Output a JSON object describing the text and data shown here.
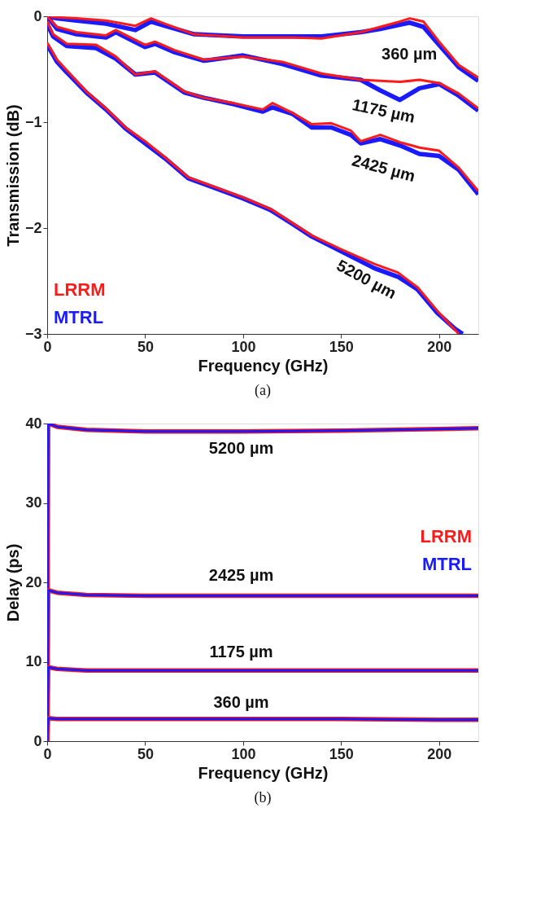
{
  "chart_data": [
    {
      "type": "line",
      "title": "(a)",
      "xlabel": "Frequency (GHz)",
      "ylabel": "Transmission (dB)",
      "xlim": [
        0,
        220
      ],
      "ylim": [
        -3,
        0
      ],
      "xticks": [
        0,
        50,
        100,
        150,
        200
      ],
      "yticks": [
        -3,
        -2,
        -1,
        0
      ],
      "grid": false,
      "legend": "bottom left",
      "marker": "none",
      "line_style": "solid",
      "series": [
        {
          "color": "#1a1aff",
          "x": [
            0,
            5,
            15,
            30,
            45,
            53,
            60,
            75,
            100,
            125,
            140,
            160,
            170,
            180,
            185,
            192,
            200,
            210,
            220
          ],
          "values": [
            0,
            -0.02,
            -0.04,
            -0.07,
            -0.13,
            -0.05,
            -0.09,
            -0.17,
            -0.19,
            -0.19,
            -0.19,
            -0.15,
            -0.12,
            -0.08,
            -0.06,
            -0.1,
            -0.27,
            -0.48,
            -0.61
          ]
        },
        {
          "name": "LRRM",
          "color": "#ff1a1a",
          "x": [
            0,
            5,
            15,
            30,
            45,
            53,
            60,
            75,
            100,
            125,
            140,
            160,
            170,
            180,
            185,
            192,
            200,
            210,
            220
          ],
          "values": [
            0,
            -0.01,
            -0.02,
            -0.04,
            -0.09,
            -0.02,
            -0.07,
            -0.17,
            -0.2,
            -0.2,
            -0.21,
            -0.15,
            -0.1,
            -0.05,
            -0.02,
            -0.05,
            -0.24,
            -0.46,
            -0.58
          ]
        },
        {
          "name": "MTRL",
          "color": "#1a1aff",
          "x": [
            0,
            5,
            15,
            30,
            35,
            50,
            55,
            65,
            80,
            100,
            120,
            140,
            160,
            170,
            180,
            190,
            200,
            210,
            220
          ],
          "values": [
            0,
            -0.12,
            -0.17,
            -0.2,
            -0.15,
            -0.29,
            -0.26,
            -0.34,
            -0.42,
            -0.37,
            -0.45,
            -0.56,
            -0.6,
            -0.7,
            -0.79,
            -0.68,
            -0.64,
            -0.75,
            -0.89
          ]
        },
        {
          "color": "#ff1a1a",
          "x": [
            0,
            5,
            15,
            30,
            35,
            50,
            55,
            65,
            80,
            100,
            120,
            140,
            160,
            170,
            180,
            190,
            200,
            210,
            220
          ],
          "values": [
            0,
            -0.1,
            -0.15,
            -0.18,
            -0.13,
            -0.27,
            -0.24,
            -0.32,
            -0.41,
            -0.38,
            -0.43,
            -0.54,
            -0.6,
            -0.61,
            -0.62,
            -0.6,
            -0.63,
            -0.73,
            -0.87
          ]
        },
        {
          "color": "#1a1aff",
          "x": [
            0,
            3,
            10,
            25,
            35,
            45,
            55,
            70,
            80,
            95,
            110,
            115,
            125,
            135,
            145,
            155,
            160,
            170,
            180,
            190,
            200,
            210,
            220
          ],
          "values": [
            -0.07,
            -0.19,
            -0.28,
            -0.3,
            -0.4,
            -0.55,
            -0.53,
            -0.72,
            -0.77,
            -0.83,
            -0.9,
            -0.86,
            -0.92,
            -1.05,
            -1.05,
            -1.12,
            -1.2,
            -1.16,
            -1.22,
            -1.3,
            -1.32,
            -1.45,
            -1.68
          ]
        },
        {
          "color": "#ff1a1a",
          "x": [
            0,
            3,
            10,
            25,
            35,
            45,
            55,
            70,
            80,
            95,
            110,
            115,
            125,
            135,
            145,
            155,
            160,
            170,
            180,
            190,
            200,
            210,
            220
          ],
          "values": [
            -0.05,
            -0.17,
            -0.26,
            -0.27,
            -0.38,
            -0.55,
            -0.52,
            -0.71,
            -0.77,
            -0.82,
            -0.88,
            -0.82,
            -0.91,
            -1.02,
            -1.01,
            -1.08,
            -1.18,
            -1.12,
            -1.19,
            -1.24,
            -1.27,
            -1.43,
            -1.65
          ]
        },
        {
          "color": "#1a1aff",
          "x": [
            0,
            5,
            10,
            20,
            30,
            40,
            50,
            60,
            72,
            100,
            114,
            125,
            135,
            150,
            167,
            179,
            189,
            199,
            208,
            212
          ],
          "values": [
            -0.27,
            -0.43,
            -0.53,
            -0.72,
            -0.88,
            -1.06,
            -1.2,
            -1.34,
            -1.53,
            -1.72,
            -1.83,
            -1.96,
            -2.08,
            -2.22,
            -2.38,
            -2.46,
            -2.58,
            -2.8,
            -2.95,
            -3.0
          ]
        },
        {
          "color": "#ff1a1a",
          "x": [
            0,
            5,
            10,
            20,
            30,
            40,
            50,
            60,
            72,
            100,
            114,
            125,
            135,
            150,
            167,
            179,
            189,
            199,
            208,
            210
          ],
          "values": [
            -0.25,
            -0.41,
            -0.51,
            -0.71,
            -0.87,
            -1.05,
            -1.18,
            -1.33,
            -1.52,
            -1.71,
            -1.82,
            -1.95,
            -2.07,
            -2.2,
            -2.34,
            -2.42,
            -2.56,
            -2.78,
            -2.96,
            -3.0
          ]
        }
      ],
      "annotations": [
        "360 µm",
        "1175 µm",
        "2425 µm",
        "5200 µm"
      ]
    },
    {
      "type": "line",
      "title": "(b)",
      "xlabel": "Frequency (GHz)",
      "ylabel": "Delay (ps)",
      "xlim": [
        0,
        220
      ],
      "ylim": [
        0,
        40
      ],
      "xticks": [
        0,
        50,
        100,
        150,
        200
      ],
      "yticks": [
        0,
        10,
        20,
        30,
        40
      ],
      "grid": false,
      "legend": "right",
      "marker": "none",
      "line_style": "solid",
      "series": [
        {
          "name": "LRRM",
          "color": "#ff1a1a",
          "x": [
            0,
            0.5,
            5,
            20,
            50,
            100,
            150,
            200,
            220
          ],
          "values": [
            0,
            40,
            39.6,
            39.2,
            39.0,
            39.0,
            39.1,
            39.3,
            39.4
          ]
        },
        {
          "name": "MTRL",
          "color": "#1a1aff",
          "x": [
            0,
            0.5,
            5,
            20,
            50,
            100,
            150,
            200,
            220
          ],
          "values": [
            0,
            40,
            39.6,
            39.2,
            39.0,
            39.0,
            39.1,
            39.3,
            39.4
          ]
        },
        {
          "color": "#ff1a1a",
          "x": [
            0,
            0.5,
            5,
            20,
            50,
            100,
            150,
            200,
            220
          ],
          "values": [
            0,
            19,
            18.7,
            18.4,
            18.3,
            18.3,
            18.3,
            18.3,
            18.3
          ]
        },
        {
          "color": "#1a1aff",
          "x": [
            0,
            0.5,
            5,
            20,
            50,
            100,
            150,
            200,
            220
          ],
          "values": [
            0,
            19,
            18.7,
            18.4,
            18.3,
            18.3,
            18.3,
            18.3,
            18.3
          ]
        },
        {
          "color": "#ff1a1a",
          "x": [
            0,
            0.5,
            5,
            20,
            50,
            100,
            150,
            200,
            220
          ],
          "values": [
            0,
            9.3,
            9.1,
            8.9,
            8.9,
            8.9,
            8.9,
            8.9,
            8.9
          ]
        },
        {
          "color": "#1a1aff",
          "x": [
            0,
            0.5,
            5,
            20,
            50,
            100,
            150,
            200,
            220
          ],
          "values": [
            0,
            9.3,
            9.1,
            8.9,
            8.9,
            8.9,
            8.9,
            8.9,
            8.9
          ]
        },
        {
          "color": "#ff1a1a",
          "x": [
            0,
            0.5,
            5,
            20,
            50,
            100,
            150,
            200,
            220
          ],
          "values": [
            0,
            2.9,
            2.8,
            2.8,
            2.8,
            2.8,
            2.8,
            2.7,
            2.7
          ]
        },
        {
          "color": "#1a1aff",
          "x": [
            0,
            0.5,
            5,
            20,
            50,
            100,
            150,
            200,
            220
          ],
          "values": [
            0,
            2.9,
            2.8,
            2.8,
            2.8,
            2.8,
            2.8,
            2.7,
            2.7
          ]
        }
      ],
      "annotations": [
        "5200 µm",
        "2425 µm",
        "1175 µm",
        "360 µm"
      ]
    }
  ]
}
